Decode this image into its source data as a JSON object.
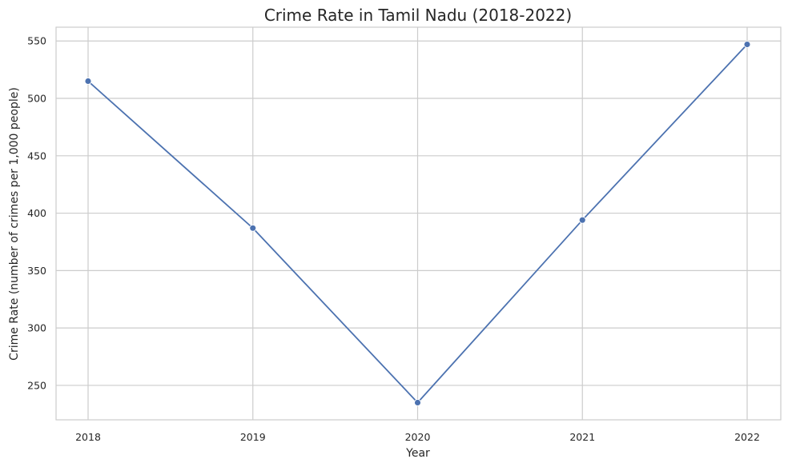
{
  "chart_data": {
    "type": "line",
    "title": "Crime Rate in Tamil Nadu (2018-2022)",
    "xlabel": "Year",
    "ylabel": "Crime Rate (number of crimes per 1,000 people)",
    "x": [
      "2018",
      "2019",
      "2020",
      "2021",
      "2022"
    ],
    "series": [
      {
        "values": [
          515,
          387,
          235,
          394,
          547
        ],
        "color": "#4c72b0"
      }
    ],
    "yticks": [
      250,
      300,
      350,
      400,
      450,
      500,
      550
    ],
    "ylim": [
      220,
      562
    ],
    "grid": true,
    "marker": "circle"
  }
}
